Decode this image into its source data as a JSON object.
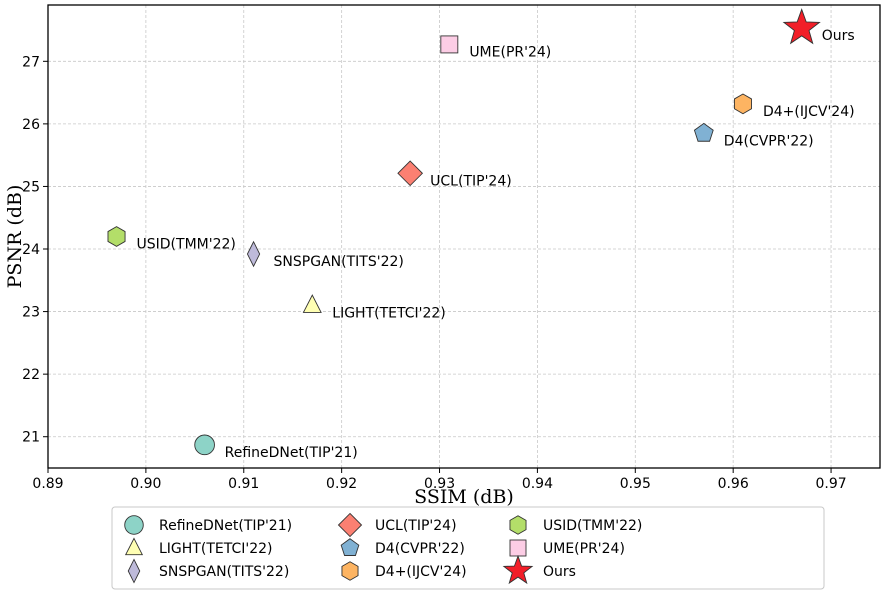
{
  "chart_data": {
    "type": "scatter",
    "xlabel": "SSIM (dB)",
    "ylabel": "PSNR (dB)",
    "xlim": [
      0.89,
      0.975
    ],
    "ylim": [
      20.5,
      27.9
    ],
    "xticks": [
      0.89,
      0.9,
      0.91,
      0.92,
      0.93,
      0.94,
      0.95,
      0.96,
      0.97
    ],
    "xtick_labels": [
      "0.89",
      "0.90",
      "0.91",
      "0.92",
      "0.93",
      "0.94",
      "0.95",
      "0.96",
      "0.97"
    ],
    "yticks": [
      21,
      22,
      23,
      24,
      25,
      26,
      27
    ],
    "ytick_labels": [
      "21",
      "22",
      "23",
      "24",
      "25",
      "26",
      "27"
    ],
    "grid": true,
    "legend_position": "bottom-outside",
    "series": [
      {
        "name": "RefineDNet(TIP'21)",
        "x": 0.906,
        "y": 20.87,
        "marker": "circle",
        "color": "#8dd3c7",
        "label": "RefineDNet(TIP'21)"
      },
      {
        "name": "LIGHT(TETCI'22)",
        "x": 0.917,
        "y": 23.1,
        "marker": "triangle",
        "color": "#ffffb3",
        "label": "LIGHT(TETCI'22)"
      },
      {
        "name": "SNSPGAN(TITS'22)",
        "x": 0.911,
        "y": 23.92,
        "marker": "thin-diamond",
        "color": "#bebada",
        "label": "SNSPGAN(TITS'22)"
      },
      {
        "name": "UCL(TIP'24)",
        "x": 0.927,
        "y": 25.21,
        "marker": "diamond",
        "color": "#fb8072",
        "label": "UCL(TIP'24)"
      },
      {
        "name": "D4(CVPR'22)",
        "x": 0.957,
        "y": 25.85,
        "marker": "pentagon",
        "color": "#80b1d3",
        "label": "D4(CVPR'22)"
      },
      {
        "name": "D4+(IJCV'24)",
        "x": 0.961,
        "y": 26.32,
        "marker": "hexagon",
        "color": "#fdb462",
        "label": "D4+(IJCV'24)"
      },
      {
        "name": "USID(TMM'22)",
        "x": 0.897,
        "y": 24.2,
        "marker": "hexagon",
        "color": "#b3de69",
        "label": "USID(TMM'22)"
      },
      {
        "name": "UME(PR'24)",
        "x": 0.931,
        "y": 27.27,
        "marker": "square",
        "color": "#fccde5",
        "label": "UME(PR'24)"
      },
      {
        "name": "Ours",
        "x": 0.967,
        "y": 27.53,
        "marker": "star",
        "color": "#f21e28",
        "label": "Ours"
      }
    ]
  }
}
